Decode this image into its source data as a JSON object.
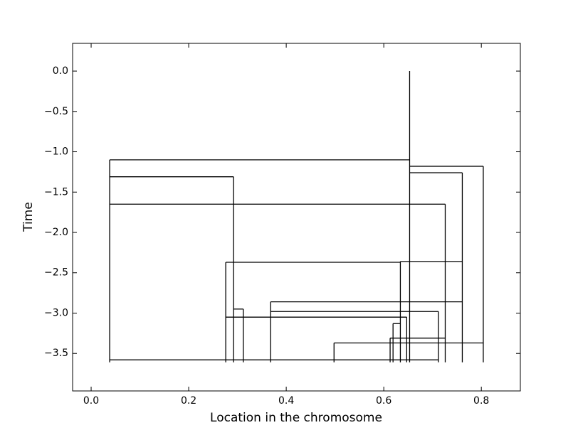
{
  "chart_data": {
    "type": "segments",
    "x_label": "Location in the chromosome",
    "y_label": "Time",
    "color": "#000000",
    "xlim": [
      -0.038,
      0.88
    ],
    "ylim": [
      -3.965,
      0.344
    ],
    "xticks": [
      {
        "value": 0,
        "label": "0.0"
      },
      0.2,
      0.4,
      0.6,
      0.8
    ],
    "yticks": [
      {
        "value": 0,
        "label": "0.0"
      },
      {
        "value": -0.5,
        "label": "−0.5"
      },
      {
        "value": -1,
        "label": "−1.0"
      },
      {
        "value": -1.5,
        "label": "−1.5"
      },
      {
        "value": -2,
        "label": "−2.0"
      },
      {
        "value": -2.5,
        "label": "−2.5"
      },
      {
        "value": -3,
        "label": "−3.0"
      },
      {
        "value": -3.5,
        "label": "−3.5"
      }
    ],
    "segments": [
      {
        "x": [
          0.653,
          0.653
        ],
        "y": [
          0.0,
          -3.61
        ]
      },
      {
        "x": [
          0.038,
          0.653
        ],
        "y": [
          -1.1,
          -1.1
        ]
      },
      {
        "x": [
          0.038,
          0.038
        ],
        "y": [
          -1.1,
          -3.61
        ]
      },
      {
        "x": [
          0.038,
          0.292
        ],
        "y": [
          -1.31,
          -1.31
        ]
      },
      {
        "x": [
          0.292,
          0.292
        ],
        "y": [
          -1.31,
          -3.61
        ]
      },
      {
        "x": [
          0.038,
          0.726
        ],
        "y": [
          -1.65,
          -1.65
        ]
      },
      {
        "x": [
          0.726,
          0.726
        ],
        "y": [
          -1.65,
          -3.61
        ]
      },
      {
        "x": [
          0.653,
          0.804
        ],
        "y": [
          -1.18,
          -1.18
        ]
      },
      {
        "x": [
          0.804,
          0.804
        ],
        "y": [
          -1.18,
          -3.61
        ]
      },
      {
        "x": [
          0.653,
          0.761
        ],
        "y": [
          -1.26,
          -1.26
        ]
      },
      {
        "x": [
          0.761,
          0.761
        ],
        "y": [
          -1.26,
          -3.61
        ]
      },
      {
        "x": [
          0.276,
          0.634
        ],
        "y": [
          -2.37,
          -2.37
        ]
      },
      {
        "x": [
          0.276,
          0.276
        ],
        "y": [
          -2.37,
          -3.61
        ]
      },
      {
        "x": [
          0.634,
          0.634
        ],
        "y": [
          -2.36,
          -3.61
        ]
      },
      {
        "x": [
          0.634,
          0.761
        ],
        "y": [
          -2.36,
          -2.36
        ]
      },
      {
        "x": [
          0.368,
          0.761
        ],
        "y": [
          -2.86,
          -2.86
        ]
      },
      {
        "x": [
          0.368,
          0.368
        ],
        "y": [
          -2.86,
          -3.61
        ]
      },
      {
        "x": [
          0.292,
          0.312
        ],
        "y": [
          -2.95,
          -2.95
        ]
      },
      {
        "x": [
          0.312,
          0.312
        ],
        "y": [
          -2.95,
          -3.61
        ]
      },
      {
        "x": [
          0.368,
          0.712
        ],
        "y": [
          -2.98,
          -2.98
        ]
      },
      {
        "x": [
          0.712,
          0.712
        ],
        "y": [
          -2.98,
          -3.61
        ]
      },
      {
        "x": [
          0.276,
          0.647
        ],
        "y": [
          -3.05,
          -3.05
        ]
      },
      {
        "x": [
          0.647,
          0.647
        ],
        "y": [
          -3.05,
          -3.61
        ]
      },
      {
        "x": [
          0.619,
          0.634
        ],
        "y": [
          -3.13,
          -3.13
        ]
      },
      {
        "x": [
          0.619,
          0.619
        ],
        "y": [
          -3.13,
          -3.61
        ]
      },
      {
        "x": [
          0.613,
          0.726
        ],
        "y": [
          -3.31,
          -3.31
        ]
      },
      {
        "x": [
          0.613,
          0.613
        ],
        "y": [
          -3.31,
          -3.61
        ]
      },
      {
        "x": [
          0.498,
          0.804
        ],
        "y": [
          -3.37,
          -3.37
        ]
      },
      {
        "x": [
          0.498,
          0.498
        ],
        "y": [
          -3.37,
          -3.61
        ]
      },
      {
        "x": [
          0.038,
          0.712
        ],
        "y": [
          -3.58,
          -3.58
        ]
      }
    ]
  }
}
